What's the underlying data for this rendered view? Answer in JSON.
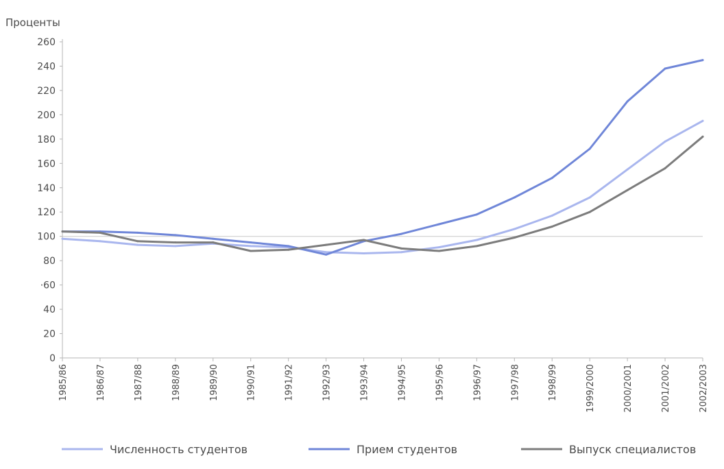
{
  "chart_data": {
    "type": "line",
    "ylabel": "Проценты",
    "xlabel": "",
    "title": "",
    "ylim": [
      0,
      260
    ],
    "yticks": [
      0,
      20,
      40,
      60,
      80,
      100,
      120,
      140,
      160,
      180,
      200,
      220,
      240,
      260
    ],
    "yticks_labels": [
      "0",
      "20",
      "40",
      "·60",
      "80",
      "100",
      "120",
      "140",
      "160",
      "180",
      "200",
      "220",
      "240",
      "260"
    ],
    "reference_line": 100,
    "grid": false,
    "legend_position": "bottom",
    "categories": [
      "1985/86",
      "1986/87",
      "1987/88",
      "1988/89",
      "1989/90",
      "1990/91",
      "1991/92",
      "1992/93",
      "1993/94",
      "1994/95",
      "1995/96",
      "1996/97",
      "1997/98",
      "1998/99",
      "1999/2000",
      "2000/2001",
      "2001/2002",
      "2002/2003"
    ],
    "series": [
      {
        "name": "Численность студентов",
        "color": "#a9b6ee",
        "values": [
          98,
          96,
          93,
          92,
          94,
          92,
          91,
          87,
          86,
          87,
          91,
          97,
          106,
          117,
          132,
          155,
          178,
          195
        ]
      },
      {
        "name": "Прием студентов",
        "color": "#6f86d8",
        "values": [
          104,
          104,
          103,
          101,
          98,
          95,
          92,
          85,
          96,
          102,
          110,
          118,
          132,
          148,
          172,
          211,
          238,
          245
        ]
      },
      {
        "name": "Выпуск специалистов",
        "color": "#7c7c7c",
        "values": [
          104,
          103,
          96,
          95,
          95,
          88,
          89,
          93,
          97,
          90,
          88,
          92,
          99,
          108,
          120,
          138,
          156,
          182
        ]
      }
    ]
  }
}
